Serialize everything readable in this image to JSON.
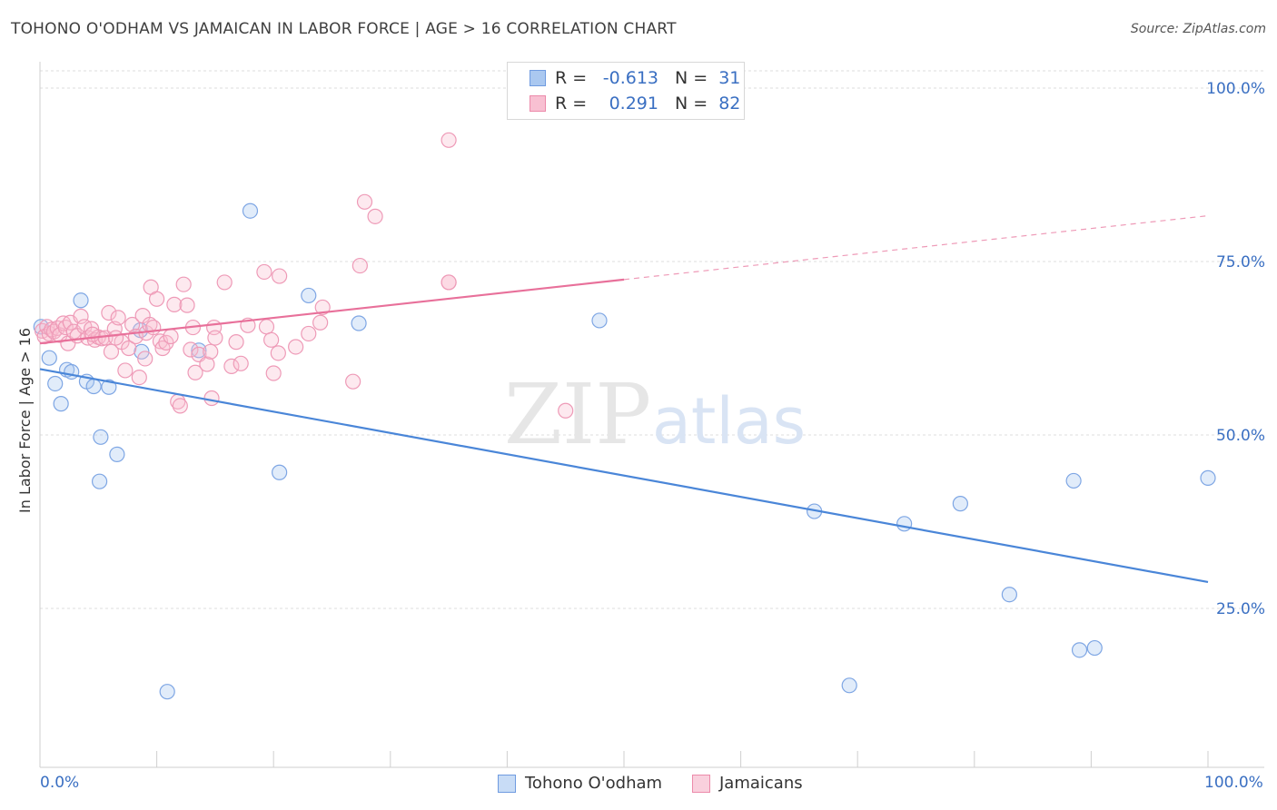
{
  "title": "TOHONO O'ODHAM VS JAMAICAN IN LABOR FORCE | AGE > 16 CORRELATION CHART",
  "source": "Source: ZipAtlas.com",
  "watermark": {
    "zip": "ZIP",
    "atlas": "atlas"
  },
  "legend": {
    "r_label": "R =",
    "n_label": "N =",
    "rows": [
      {
        "r": "-0.613",
        "n": "31",
        "fill": "#aac8f0",
        "stroke": "#6f9be0"
      },
      {
        "r": "0.291",
        "n": "82",
        "fill": "#f8c0d2",
        "stroke": "#ec8aaa"
      }
    ]
  },
  "bottom_legend": [
    {
      "label": "Tohono O'odham",
      "fill": "#c8dcf6",
      "stroke": "#6f9be0"
    },
    {
      "label": "Jamaicans",
      "fill": "#f9d0dd",
      "stroke": "#ec8aaa"
    }
  ],
  "x_tick_labels": {
    "left": "0.0%",
    "right": "100.0%"
  },
  "chart_data": {
    "type": "scatter",
    "title": "TOHONO O'ODHAM VS JAMAICAN IN LABOR FORCE | AGE > 16 CORRELATION CHART",
    "xlabel": "",
    "ylabel": "In Labor Force | Age > 16",
    "xlim": [
      0,
      100
    ],
    "ylim": [
      0,
      102
    ],
    "y_ticks": [
      {
        "value": 25,
        "label": "25.0%"
      },
      {
        "value": 50,
        "label": "50.0%"
      },
      {
        "value": 75,
        "label": "75.0%"
      },
      {
        "value": 100,
        "label": "100.0%"
      }
    ],
    "grid": true,
    "legend_position": "top-center",
    "series": [
      {
        "name": "Tohono O'odham",
        "color": "#4a86d8",
        "fill": "rgba(170,200,240,0.35)",
        "stroke": "#7ea6e4",
        "trend": {
          "x0": 0,
          "y0": 59.5,
          "x1": 100,
          "y1": 28.8,
          "dashed_from": null
        },
        "points": [
          [
            0.1,
            65.6
          ],
          [
            0.8,
            61.1
          ],
          [
            1.3,
            57.4
          ],
          [
            1.8,
            54.5
          ],
          [
            2.3,
            59.4
          ],
          [
            2.7,
            59.1
          ],
          [
            3.5,
            69.4
          ],
          [
            4.0,
            57.7
          ],
          [
            4.6,
            57.0
          ],
          [
            5.2,
            49.7
          ],
          [
            5.1,
            43.3
          ],
          [
            5.9,
            56.9
          ],
          [
            6.6,
            47.2
          ],
          [
            8.7,
            62.0
          ],
          [
            8.6,
            65.1
          ],
          [
            10.9,
            13.0
          ],
          [
            13.6,
            62.2
          ],
          [
            18.0,
            82.3
          ],
          [
            20.5,
            44.6
          ],
          [
            23.0,
            70.1
          ],
          [
            27.3,
            66.1
          ],
          [
            47.9,
            66.5
          ],
          [
            66.3,
            39.0
          ],
          [
            69.3,
            13.9
          ],
          [
            74.0,
            37.2
          ],
          [
            78.8,
            40.1
          ],
          [
            83.0,
            27.0
          ],
          [
            88.5,
            43.4
          ],
          [
            89.0,
            19.0
          ],
          [
            90.3,
            19.3
          ],
          [
            100.0,
            43.8
          ]
        ]
      },
      {
        "name": "Jamaicans",
        "color": "#e8709a",
        "fill": "rgba(248,192,210,0.35)",
        "stroke": "#ee9ab7",
        "trend": {
          "x0": 0,
          "y0": 63.2,
          "x1": 100,
          "y1": 81.6,
          "dashed_from": 50
        },
        "points": [
          [
            0.2,
            65.0
          ],
          [
            0.4,
            64.2
          ],
          [
            0.6,
            65.6
          ],
          [
            0.8,
            64.6
          ],
          [
            1.0,
            65.2
          ],
          [
            1.2,
            64.9
          ],
          [
            1.5,
            65.4
          ],
          [
            1.7,
            64.4
          ],
          [
            2.0,
            66.1
          ],
          [
            2.2,
            65.5
          ],
          [
            2.4,
            63.2
          ],
          [
            2.6,
            66.2
          ],
          [
            2.9,
            64.9
          ],
          [
            3.2,
            64.3
          ],
          [
            3.5,
            67.1
          ],
          [
            3.8,
            65.6
          ],
          [
            4.1,
            64.0
          ],
          [
            4.4,
            65.3
          ],
          [
            4.7,
            63.7
          ],
          [
            5.0,
            64.1
          ],
          [
            5.3,
            63.9
          ],
          [
            5.6,
            64.0
          ],
          [
            5.9,
            67.6
          ],
          [
            6.1,
            62.0
          ],
          [
            6.4,
            65.3
          ],
          [
            6.7,
            66.9
          ],
          [
            7.0,
            63.4
          ],
          [
            7.3,
            59.3
          ],
          [
            7.6,
            62.5
          ],
          [
            7.9,
            65.9
          ],
          [
            8.2,
            64.2
          ],
          [
            8.5,
            58.3
          ],
          [
            8.8,
            67.2
          ],
          [
            9.1,
            64.7
          ],
          [
            9.4,
            65.9
          ],
          [
            9.7,
            65.5
          ],
          [
            9.5,
            71.3
          ],
          [
            10.0,
            69.6
          ],
          [
            10.3,
            63.5
          ],
          [
            10.5,
            62.5
          ],
          [
            10.8,
            63.3
          ],
          [
            11.2,
            64.2
          ],
          [
            11.5,
            68.8
          ],
          [
            11.8,
            54.8
          ],
          [
            12.0,
            54.2
          ],
          [
            12.3,
            71.7
          ],
          [
            12.6,
            68.7
          ],
          [
            12.9,
            62.3
          ],
          [
            13.1,
            65.5
          ],
          [
            13.3,
            59.0
          ],
          [
            13.6,
            61.6
          ],
          [
            14.3,
            60.2
          ],
          [
            14.6,
            62.0
          ],
          [
            14.9,
            65.5
          ],
          [
            14.7,
            55.3
          ],
          [
            15.8,
            72.0
          ],
          [
            16.4,
            59.9
          ],
          [
            16.8,
            63.4
          ],
          [
            17.2,
            60.3
          ],
          [
            17.8,
            65.8
          ],
          [
            19.2,
            73.5
          ],
          [
            19.4,
            65.6
          ],
          [
            19.8,
            63.7
          ],
          [
            20.0,
            58.9
          ],
          [
            20.4,
            61.8
          ],
          [
            20.5,
            72.9
          ],
          [
            21.9,
            62.7
          ],
          [
            23.0,
            64.6
          ],
          [
            24.0,
            66.2
          ],
          [
            24.2,
            68.4
          ],
          [
            26.8,
            57.7
          ],
          [
            27.4,
            74.4
          ],
          [
            27.8,
            83.6
          ],
          [
            28.7,
            81.5
          ],
          [
            35.0,
            92.5
          ],
          [
            45.0,
            53.5
          ],
          [
            35.0,
            72.0
          ],
          [
            35.0,
            72.0
          ],
          [
            15.0,
            64.0
          ],
          [
            9.0,
            61.0
          ],
          [
            4.5,
            64.5
          ],
          [
            6.5,
            64.0
          ]
        ]
      }
    ]
  }
}
